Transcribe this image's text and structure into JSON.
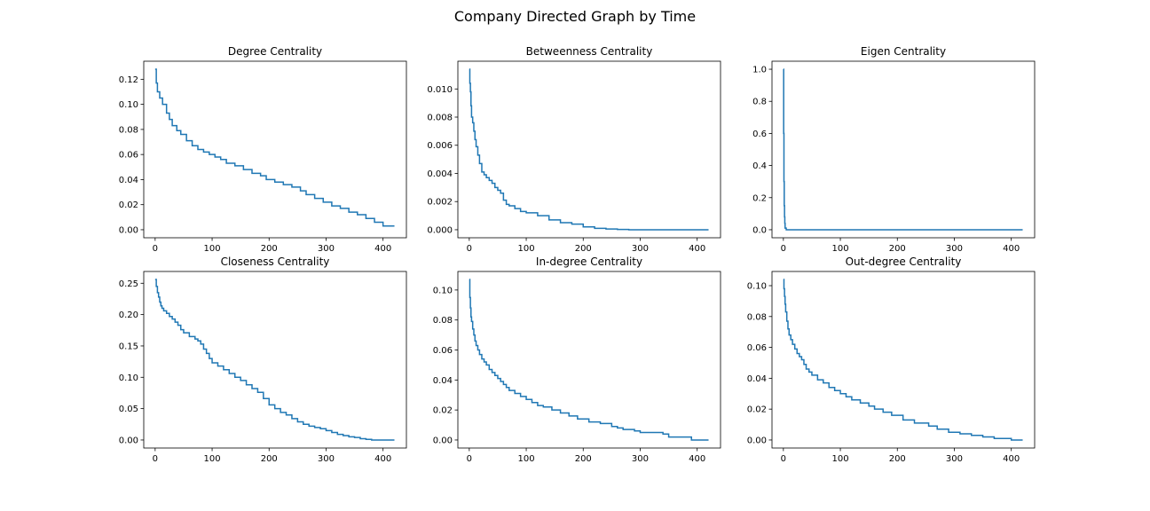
{
  "figure": {
    "suptitle": "Company Directed Graph by Time",
    "line_color": "#1f77b4"
  },
  "chart_data": [
    {
      "type": "line",
      "title": "Degree Centrality",
      "xlabel": "",
      "ylabel": "",
      "xlim": [
        -20,
        441
      ],
      "ylim": [
        -0.0064,
        0.1344
      ],
      "xticks": [
        0,
        100,
        200,
        300,
        400
      ],
      "xtick_labels": [
        "0",
        "100",
        "200",
        "300",
        "400"
      ],
      "yticks": [
        0.0,
        0.02,
        0.04,
        0.06,
        0.08,
        0.1,
        0.12
      ],
      "ytick_labels": [
        "0.00",
        "0.02",
        "0.04",
        "0.06",
        "0.08",
        "0.10",
        "0.12"
      ],
      "grid": false,
      "series": [
        {
          "x": [
            0,
            2,
            4,
            8,
            13,
            20,
            25,
            30,
            38,
            45,
            55,
            65,
            75,
            85,
            95,
            105,
            115,
            125,
            140,
            155,
            170,
            185,
            195,
            210,
            225,
            240,
            255,
            265,
            280,
            295,
            310,
            325,
            340,
            355,
            370,
            385,
            400,
            420
          ],
          "y": [
            0.128,
            0.117,
            0.11,
            0.105,
            0.1,
            0.093,
            0.088,
            0.083,
            0.079,
            0.076,
            0.071,
            0.067,
            0.064,
            0.062,
            0.06,
            0.058,
            0.056,
            0.053,
            0.051,
            0.048,
            0.045,
            0.043,
            0.04,
            0.038,
            0.036,
            0.034,
            0.031,
            0.028,
            0.025,
            0.022,
            0.019,
            0.017,
            0.014,
            0.012,
            0.009,
            0.006,
            0.003,
            0.003
          ]
        }
      ]
    },
    {
      "type": "line",
      "title": "Betweenness Centrality",
      "xlabel": "",
      "ylabel": "",
      "xlim": [
        -20,
        441
      ],
      "ylim": [
        -0.00057,
        0.01197
      ],
      "xticks": [
        0,
        100,
        200,
        300,
        400
      ],
      "xtick_labels": [
        "0",
        "100",
        "200",
        "300",
        "400"
      ],
      "yticks": [
        0.0,
        0.002,
        0.004,
        0.006,
        0.008,
        0.01
      ],
      "ytick_labels": [
        "0.000",
        "0.002",
        "0.004",
        "0.006",
        "0.008",
        "0.010"
      ],
      "grid": false,
      "series": [
        {
          "x": [
            0,
            1,
            2,
            3,
            4,
            6,
            8,
            10,
            12,
            15,
            18,
            22,
            26,
            30,
            35,
            40,
            45,
            50,
            55,
            60,
            65,
            70,
            80,
            90,
            100,
            120,
            140,
            160,
            180,
            200,
            220,
            240,
            260,
            280,
            300,
            350,
            420
          ],
          "y": [
            0.0114,
            0.0104,
            0.0098,
            0.0088,
            0.008,
            0.0076,
            0.007,
            0.0064,
            0.0059,
            0.0053,
            0.0047,
            0.0041,
            0.0039,
            0.0037,
            0.0035,
            0.0033,
            0.003,
            0.0028,
            0.0026,
            0.0021,
            0.0018,
            0.0017,
            0.0015,
            0.0013,
            0.0012,
            0.001,
            0.0007,
            0.0005,
            0.0004,
            0.0002,
            0.0001,
            5e-05,
            2e-05,
            0.0,
            0.0,
            0.0,
            0.0
          ]
        }
      ]
    },
    {
      "type": "line",
      "title": "Eigen Centrality",
      "xlabel": "",
      "ylabel": "",
      "xlim": [
        -20,
        441
      ],
      "ylim": [
        -0.05,
        1.05
      ],
      "xticks": [
        0,
        100,
        200,
        300,
        400
      ],
      "xtick_labels": [
        "0",
        "100",
        "200",
        "300",
        "400"
      ],
      "yticks": [
        0.0,
        0.2,
        0.4,
        0.6,
        0.8,
        1.0
      ],
      "ytick_labels": [
        "0.0",
        "0.2",
        "0.4",
        "0.6",
        "0.8",
        "1.0"
      ],
      "grid": false,
      "series": [
        {
          "x": [
            0,
            0.5,
            1,
            1.5,
            2,
            2.5,
            3,
            5,
            420
          ],
          "y": [
            1.0,
            0.6,
            0.3,
            0.15,
            0.08,
            0.04,
            0.01,
            0.0,
            0.0
          ]
        }
      ]
    },
    {
      "type": "line",
      "title": "Closeness Centrality",
      "xlabel": "",
      "ylabel": "",
      "xlim": [
        -20,
        441
      ],
      "ylim": [
        -0.0128,
        0.2688
      ],
      "xticks": [
        0,
        100,
        200,
        300,
        400
      ],
      "xtick_labels": [
        "0",
        "100",
        "200",
        "300",
        "400"
      ],
      "yticks": [
        0.0,
        0.05,
        0.1,
        0.15,
        0.2,
        0.25
      ],
      "ytick_labels": [
        "0.00",
        "0.05",
        "0.10",
        "0.15",
        "0.20",
        "0.25"
      ],
      "grid": false,
      "series": [
        {
          "x": [
            0,
            2,
            4,
            6,
            8,
            10,
            12,
            15,
            20,
            25,
            30,
            35,
            40,
            45,
            50,
            60,
            70,
            75,
            80,
            85,
            90,
            95,
            100,
            110,
            120,
            130,
            140,
            150,
            160,
            170,
            180,
            190,
            200,
            210,
            220,
            230,
            240,
            250,
            260,
            270,
            280,
            290,
            300,
            310,
            320,
            330,
            340,
            350,
            360,
            370,
            380,
            420
          ],
          "y": [
            0.256,
            0.245,
            0.235,
            0.228,
            0.22,
            0.214,
            0.21,
            0.206,
            0.202,
            0.197,
            0.193,
            0.188,
            0.183,
            0.176,
            0.171,
            0.165,
            0.161,
            0.158,
            0.153,
            0.145,
            0.138,
            0.13,
            0.123,
            0.118,
            0.112,
            0.106,
            0.1,
            0.095,
            0.088,
            0.082,
            0.076,
            0.066,
            0.056,
            0.05,
            0.044,
            0.04,
            0.034,
            0.029,
            0.025,
            0.022,
            0.02,
            0.018,
            0.015,
            0.012,
            0.009,
            0.007,
            0.005,
            0.004,
            0.002,
            0.001,
            0.0,
            0.0
          ]
        }
      ]
    },
    {
      "type": "line",
      "title": "In-degree Centrality",
      "xlabel": "",
      "ylabel": "",
      "xlim": [
        -20,
        441
      ],
      "ylim": [
        -0.00535,
        0.11235
      ],
      "xticks": [
        0,
        100,
        200,
        300,
        400
      ],
      "xtick_labels": [
        "0",
        "100",
        "200",
        "300",
        "400"
      ],
      "yticks": [
        0.0,
        0.02,
        0.04,
        0.06,
        0.08,
        0.1
      ],
      "ytick_labels": [
        "0.00",
        "0.02",
        "0.04",
        "0.06",
        "0.08",
        "0.10"
      ],
      "grid": false,
      "series": [
        {
          "x": [
            0,
            1,
            2,
            3,
            4,
            6,
            8,
            10,
            12,
            15,
            18,
            22,
            26,
            30,
            35,
            40,
            45,
            50,
            55,
            60,
            65,
            70,
            80,
            90,
            100,
            110,
            120,
            130,
            145,
            160,
            175,
            190,
            210,
            230,
            250,
            260,
            270,
            290,
            300,
            340,
            350,
            370,
            390,
            420
          ],
          "y": [
            0.107,
            0.095,
            0.088,
            0.082,
            0.079,
            0.074,
            0.07,
            0.066,
            0.063,
            0.06,
            0.057,
            0.054,
            0.052,
            0.05,
            0.047,
            0.045,
            0.043,
            0.041,
            0.039,
            0.037,
            0.035,
            0.033,
            0.031,
            0.029,
            0.027,
            0.025,
            0.023,
            0.022,
            0.02,
            0.018,
            0.016,
            0.014,
            0.012,
            0.011,
            0.009,
            0.008,
            0.007,
            0.006,
            0.005,
            0.004,
            0.002,
            0.002,
            0.0,
            0.0
          ]
        }
      ]
    },
    {
      "type": "line",
      "title": "Out-degree Centrality",
      "xlabel": "",
      "ylabel": "",
      "xlim": [
        -20,
        441
      ],
      "ylim": [
        -0.0052,
        0.1092
      ],
      "xticks": [
        0,
        100,
        200,
        300,
        400
      ],
      "xtick_labels": [
        "0",
        "100",
        "200",
        "300",
        "400"
      ],
      "yticks": [
        0.0,
        0.02,
        0.04,
        0.06,
        0.08,
        0.1
      ],
      "ytick_labels": [
        "0.00",
        "0.02",
        "0.04",
        "0.06",
        "0.08",
        "0.10"
      ],
      "grid": false,
      "series": [
        {
          "x": [
            0,
            1,
            2,
            3,
            4,
            6,
            8,
            10,
            13,
            16,
            20,
            24,
            28,
            32,
            36,
            40,
            45,
            50,
            60,
            70,
            80,
            90,
            100,
            110,
            120,
            135,
            150,
            160,
            175,
            190,
            210,
            230,
            255,
            270,
            290,
            310,
            330,
            350,
            370,
            400,
            420
          ],
          "y": [
            0.104,
            0.098,
            0.093,
            0.088,
            0.083,
            0.077,
            0.072,
            0.068,
            0.065,
            0.062,
            0.059,
            0.056,
            0.054,
            0.052,
            0.049,
            0.046,
            0.044,
            0.042,
            0.039,
            0.037,
            0.034,
            0.032,
            0.03,
            0.028,
            0.026,
            0.024,
            0.022,
            0.02,
            0.018,
            0.016,
            0.013,
            0.011,
            0.009,
            0.007,
            0.005,
            0.004,
            0.003,
            0.002,
            0.001,
            0.0,
            0.0
          ]
        }
      ]
    }
  ]
}
